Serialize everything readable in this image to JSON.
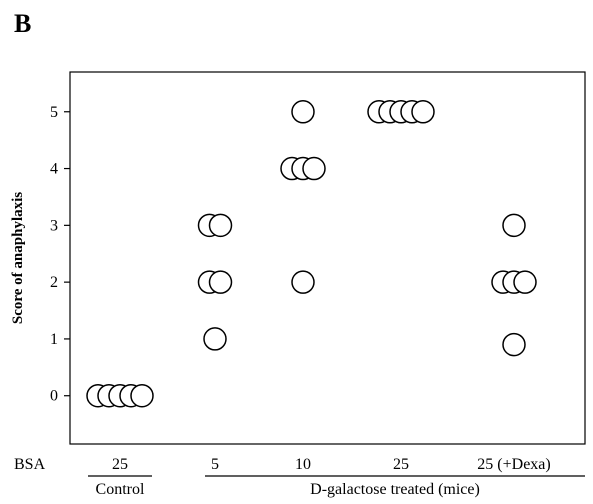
{
  "panel_label": "B",
  "row_label": "BSA",
  "chart_data": {
    "type": "scatter",
    "title": "",
    "xlabel": "",
    "ylabel": "Score of anaphylaxis",
    "ylim": [
      -0.85,
      5.7
    ],
    "yticks": [
      0,
      1,
      2,
      3,
      4,
      5
    ],
    "categories": [
      "25",
      "5",
      "10",
      "25",
      "25 (+Dexa)"
    ],
    "groups": [
      {
        "label": "Control",
        "categories": [
          0
        ]
      },
      {
        "label": "D-galactose treated (mice)",
        "categories": [
          1,
          2,
          3,
          4
        ]
      }
    ],
    "points": [
      {
        "category": 0,
        "y": 0,
        "count": 5
      },
      {
        "category": 1,
        "y": 3,
        "count": 2
      },
      {
        "category": 1,
        "y": 2,
        "count": 2
      },
      {
        "category": 1,
        "y": 1,
        "count": 1
      },
      {
        "category": 2,
        "y": 5,
        "count": 1
      },
      {
        "category": 2,
        "y": 4,
        "count": 3
      },
      {
        "category": 2,
        "y": 2,
        "count": 1
      },
      {
        "category": 3,
        "y": 5,
        "count": 5
      },
      {
        "category": 4,
        "y": 3,
        "count": 1
      },
      {
        "category": 4,
        "y": 2,
        "count": 3
      },
      {
        "category": 4,
        "y": 0.9,
        "count": 1
      }
    ],
    "grid": false,
    "marker": "open-circle"
  }
}
